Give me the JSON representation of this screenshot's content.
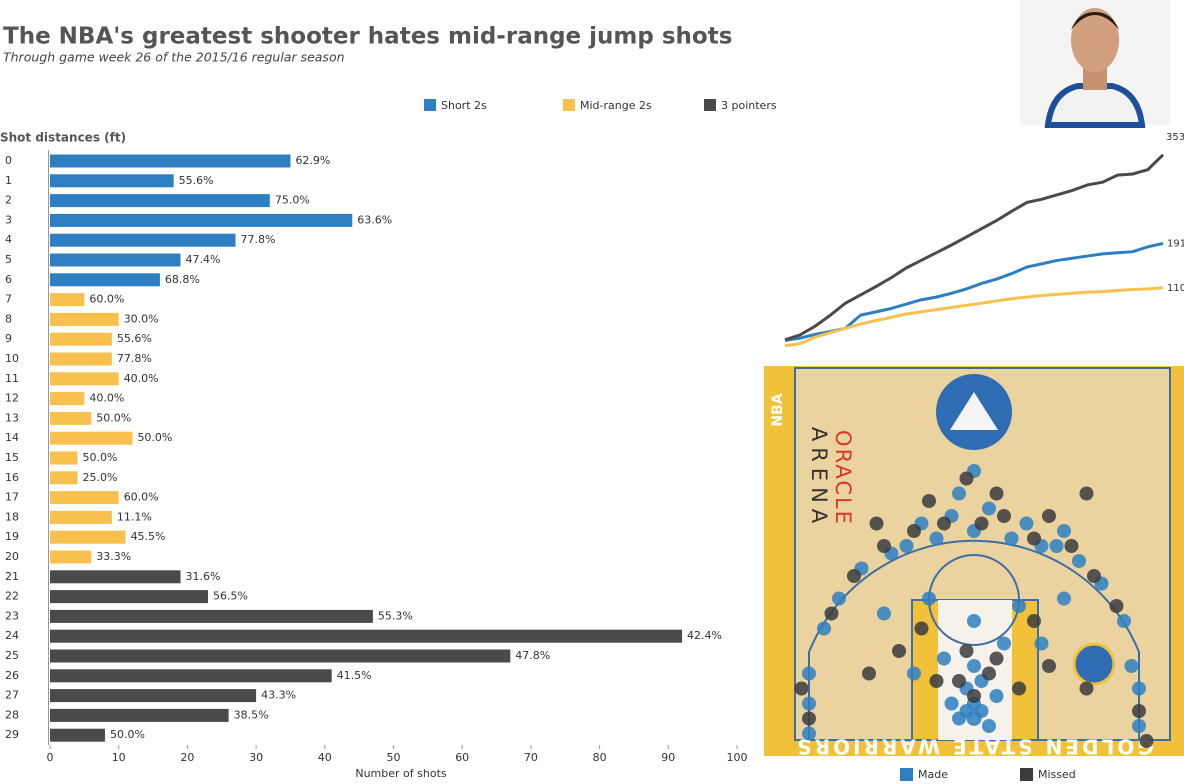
{
  "header": {
    "title": "The NBA's greatest shooter hates mid-range jump shots",
    "subtitle": "Through game week 26 of the 2015/16 regular season"
  },
  "chart_data": [
    {
      "type": "bar",
      "orientation": "horizontal",
      "y_axis_title": "Shot distances (ft)",
      "x_axis_title": "Number of shots",
      "categories": [
        0,
        1,
        2,
        3,
        4,
        5,
        6,
        7,
        8,
        9,
        10,
        11,
        12,
        13,
        14,
        15,
        16,
        17,
        18,
        19,
        20,
        21,
        22,
        23,
        24,
        25,
        26,
        27,
        28,
        29
      ],
      "xlim": [
        0,
        100
      ],
      "xticks": [
        0,
        10,
        20,
        30,
        40,
        50,
        60,
        70,
        80,
        90,
        100
      ],
      "series": [
        {
          "name": "Short 2s",
          "color": "#2e7fc2",
          "values": [
            35,
            18,
            32,
            44,
            27,
            19,
            16,
            null,
            null,
            null,
            null,
            null,
            null,
            null,
            null,
            null,
            null,
            null,
            null,
            null,
            null,
            null,
            null,
            null,
            null,
            null,
            null,
            null,
            null,
            null
          ],
          "value_labels": [
            "62.9%",
            "55.6%",
            "75.0%",
            "63.6%",
            "77.8%",
            "47.4%",
            "68.8%",
            null,
            null,
            null,
            null,
            null,
            null,
            null,
            null,
            null,
            null,
            null,
            null,
            null,
            null,
            null,
            null,
            null,
            null,
            null,
            null,
            null,
            null,
            null
          ]
        },
        {
          "name": "Mid-range 2s",
          "color": "#f8c14d",
          "values": [
            null,
            null,
            null,
            null,
            null,
            null,
            null,
            5,
            10,
            9,
            9,
            10,
            5,
            6,
            12,
            4,
            4,
            10,
            9,
            11,
            6,
            null,
            null,
            null,
            null,
            null,
            null,
            null,
            null,
            null
          ],
          "value_labels": [
            null,
            null,
            null,
            null,
            null,
            null,
            null,
            "60.0%",
            "30.0%",
            "55.6%",
            "77.8%",
            "40.0%",
            "40.0%",
            "50.0%",
            "50.0%",
            "50.0%",
            "25.0%",
            "60.0%",
            "11.1%",
            "45.5%",
            "33.3%",
            null,
            null,
            null,
            null,
            null,
            null,
            null,
            null,
            null
          ]
        },
        {
          "name": "3 pointers",
          "color": "#4a4a4d",
          "values": [
            null,
            null,
            null,
            null,
            null,
            null,
            null,
            null,
            null,
            null,
            null,
            null,
            null,
            null,
            null,
            null,
            null,
            null,
            null,
            null,
            null,
            19,
            23,
            47,
            92,
            67,
            41,
            30,
            26,
            8
          ],
          "value_labels": [
            null,
            null,
            null,
            null,
            null,
            null,
            null,
            null,
            null,
            null,
            null,
            null,
            null,
            null,
            null,
            null,
            null,
            null,
            null,
            null,
            null,
            "31.6%",
            "56.5%",
            "55.3%",
            "42.4%",
            "47.8%",
            "41.5%",
            "43.3%",
            "38.5%",
            "50.0%"
          ]
        }
      ]
    },
    {
      "type": "line",
      "ylim": [
        0,
        360
      ],
      "series": [
        {
          "color": "#2e7fc2",
          "values": [
            14,
            18,
            25,
            30,
            36,
            60,
            66,
            72,
            80,
            88,
            93,
            100,
            108,
            118,
            126,
            136,
            148,
            154,
            160,
            164,
            168,
            172,
            174,
            176,
            185,
            191
          ]
        },
        {
          "color": "#f8c14d",
          "values": [
            4,
            8,
            20,
            28,
            36,
            44,
            50,
            56,
            62,
            66,
            70,
            74,
            78,
            82,
            86,
            90,
            93,
            96,
            98,
            100,
            102,
            103,
            105,
            107,
            108,
            110
          ]
        },
        {
          "color": "#4a4a4d",
          "values": [
            15,
            24,
            40,
            60,
            82,
            97,
            112,
            128,
            146,
            160,
            174,
            188,
            203,
            218,
            233,
            250,
            266,
            272,
            280,
            288,
            298,
            303,
            316,
            318,
            326,
            353
          ]
        }
      ]
    },
    {
      "type": "scatter",
      "xlim": [
        -28,
        28
      ],
      "ylim": [
        -1,
        51
      ],
      "annotations": [
        "NBA",
        "ORACLE",
        "ARENA",
        "GOLDEN STATE WARRIORS"
      ],
      "series": [
        {
          "name": "Made",
          "color": "#2e7fc2",
          "x": [
            0,
            -1,
            1,
            0,
            -2,
            2,
            -1,
            1,
            0,
            3,
            -3,
            -4,
            4,
            -8,
            9,
            -12,
            12,
            0,
            -6,
            6,
            -22,
            -22,
            -22,
            22,
            22,
            21,
            -20,
            -18,
            20,
            17,
            -15,
            14,
            -9,
            -5,
            0,
            5,
            9,
            -11,
            11,
            -3,
            2,
            7,
            -7,
            12,
            -2,
            0
          ],
          "values": [
            4,
            5,
            5,
            6,
            4,
            3,
            8,
            9,
            11,
            7,
            6,
            12,
            14,
            10,
            14,
            18,
            20,
            17,
            20,
            19,
            2,
            6,
            10,
            3,
            8,
            11,
            16,
            20,
            17,
            22,
            24,
            25,
            27,
            28,
            29,
            28,
            27,
            26,
            27,
            31,
            32,
            30,
            30,
            29,
            34,
            37
          ]
        },
        {
          "name": "Missed",
          "color": "#3b3b3e",
          "x": [
            0,
            -2,
            2,
            -1,
            3,
            -5,
            6,
            -10,
            10,
            -7,
            8,
            -14,
            15,
            -22,
            22,
            23,
            -23,
            -19,
            19,
            -16,
            16,
            -12,
            -8,
            -4,
            1,
            4,
            8,
            13,
            -6,
            3,
            10,
            -13,
            15,
            -1
          ],
          "values": [
            7,
            9,
            10,
            13,
            12,
            9,
            8,
            13,
            11,
            16,
            17,
            10,
            8,
            4,
            5,
            1,
            8,
            18,
            19,
            23,
            23,
            27,
            29,
            30,
            30,
            31,
            28,
            27,
            33,
            34,
            31,
            30,
            34,
            36
          ]
        }
      ]
    }
  ]
}
